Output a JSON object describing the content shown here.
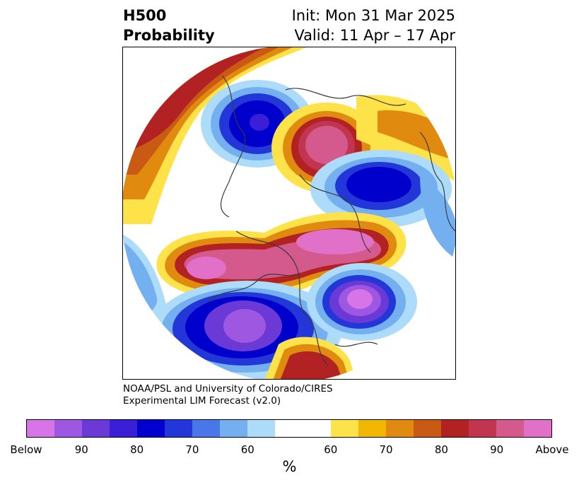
{
  "header": {
    "title_line1": "H500",
    "title_line2": "Probability",
    "init": "Init: Mon 31 Mar 2025",
    "valid": "Valid: 11 Apr – 17 Apr"
  },
  "credit": {
    "line1": "NOAA/PSL and University of Colorado/CIRES",
    "line2": "Experimental LIM Forecast (v2.0)"
  },
  "colorbar": {
    "colors": [
      "#d675e8",
      "#9e57e0",
      "#6b3ad6",
      "#3a1fd6",
      "#0000cc",
      "#2337d9",
      "#4a77e8",
      "#74b0f0",
      "#acdcfa",
      "#ffffff",
      "#ffffff",
      "#fde24a",
      "#f2b705",
      "#e08a10",
      "#c85a14",
      "#b22222",
      "#c23550",
      "#d45a8e",
      "#e070c8"
    ],
    "ticks": [
      "Below",
      "90",
      "80",
      "70",
      "60",
      "60",
      "70",
      "80",
      "90",
      "Above"
    ],
    "unit": "%"
  },
  "legend_semantics": {
    "below_colors": "purple-blue",
    "above_colors": "yellow-red-magenta"
  }
}
